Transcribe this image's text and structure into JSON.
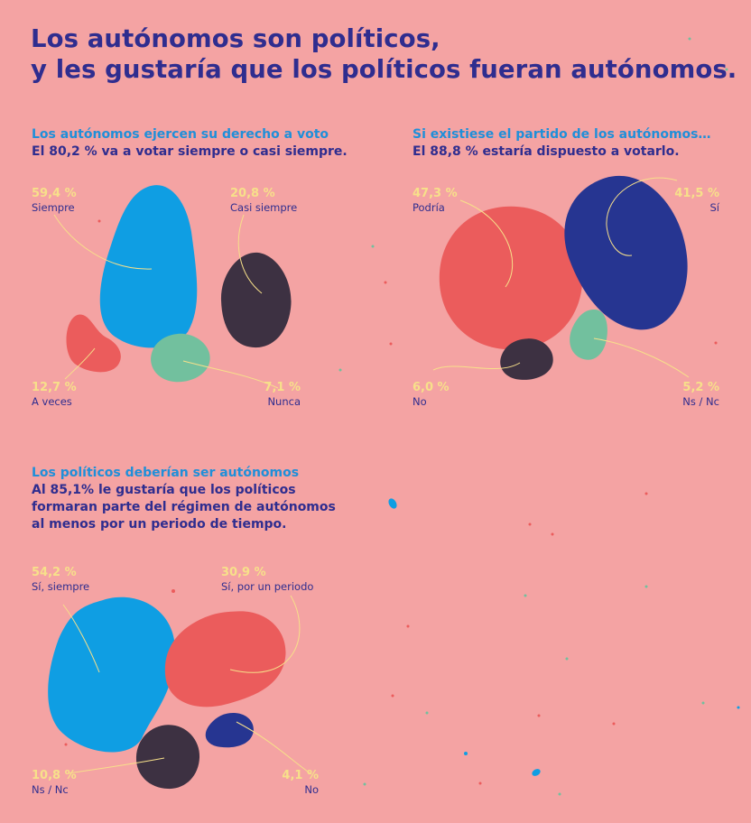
{
  "colors": {
    "background": "#f4a3a3",
    "navy": "#2f2d8f",
    "blue_text": "#1f8fd9",
    "yellow": "#f7e08a",
    "blob_blue": "#0f9ee3",
    "blob_red": "#eb5c5c",
    "blob_dark": "#3d3142",
    "blob_green": "#72c09e",
    "blob_navy": "#263591"
  },
  "title": {
    "line1": "Los autónomos son políticos,",
    "line2": "y les gustaría que los políticos fueran autónomos."
  },
  "section1": {
    "heading": "Los autónomos ejercen su derecho a voto",
    "subheading": "El 80,2 % va a votar siempre o casi siempre."
  },
  "section2": {
    "heading": "Si existiese el partido de los autónomos…",
    "subheading": "El 88,8 % estaría dispuesto a votarlo."
  },
  "section3": {
    "heading": "Los políticos deberían ser autónomos",
    "subheading_lines": [
      "Al 85,1% le gustaría que los políticos",
      "formaran parte del régimen de autónomos",
      "al menos por un periodo de tiempo."
    ]
  },
  "chart_data": [
    {
      "type": "pie",
      "title": "Los autónomos ejercen su derecho a voto",
      "categories": [
        "Siempre",
        "Casi siempre",
        "A veces",
        "Nunca"
      ],
      "values": [
        59.4,
        20.8,
        12.7,
        7.1
      ],
      "value_labels": [
        "59,4 %",
        "20,8 %",
        "12,7 %",
        "7,1 %"
      ],
      "colors": [
        "#0f9ee3",
        "#3d3142",
        "#eb5c5c",
        "#72c09e"
      ]
    },
    {
      "type": "pie",
      "title": "Si existiese el partido de los autónomos…",
      "categories": [
        "Podría",
        "Sí",
        "No",
        "Ns / Nc"
      ],
      "values": [
        47.3,
        41.5,
        6.0,
        5.2
      ],
      "value_labels": [
        "47,3 %",
        "41,5 %",
        "6,0 %",
        "5,2 %"
      ],
      "colors": [
        "#eb5c5c",
        "#263591",
        "#3d3142",
        "#72c09e"
      ]
    },
    {
      "type": "pie",
      "title": "Los políticos deberían ser autónomos",
      "categories": [
        "Sí, siempre",
        "Sí, por un periodo",
        "Ns / Nc",
        "No"
      ],
      "values": [
        54.2,
        30.9,
        10.8,
        4.1
      ],
      "value_labels": [
        "54,2 %",
        "30,9 %",
        "10,8 %",
        "4,1 %"
      ],
      "colors": [
        "#0f9ee3",
        "#eb5c5c",
        "#3d3142",
        "#263591"
      ]
    }
  ]
}
